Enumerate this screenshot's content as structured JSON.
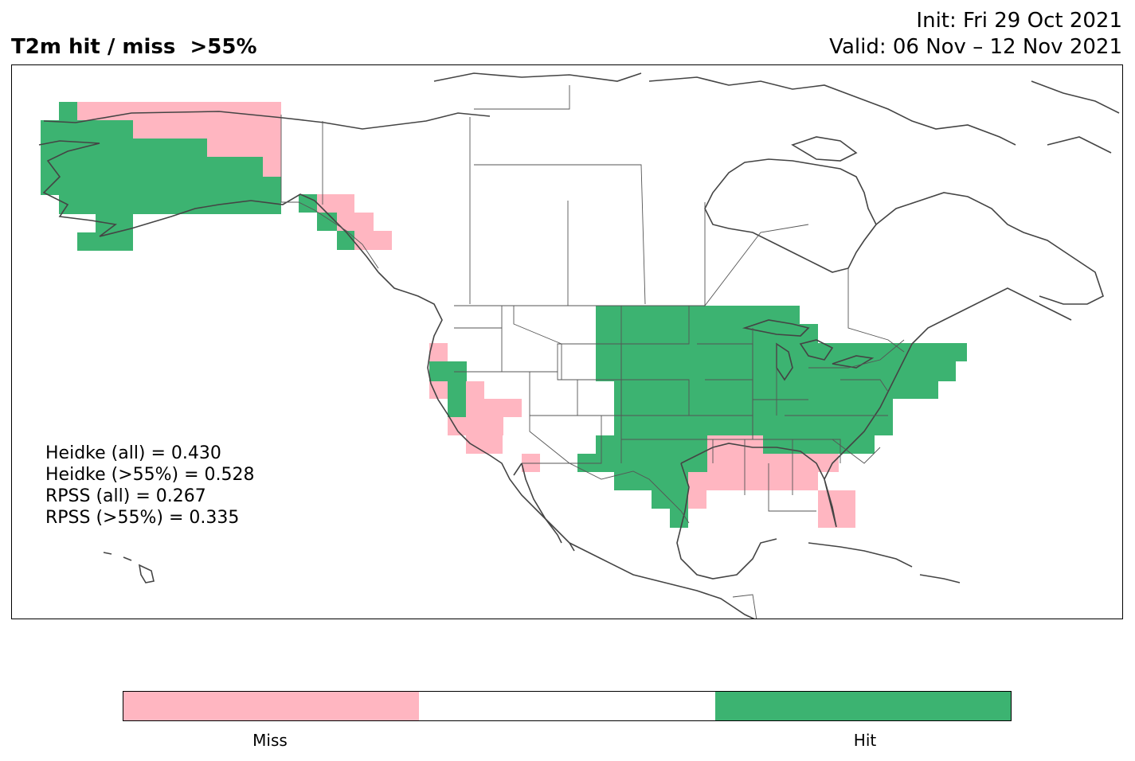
{
  "title": {
    "main": "T2m hit / miss  >55%",
    "init": "Init: Fri 29 Oct 2021",
    "valid": "Valid: 06 Nov – 12 Nov 2021"
  },
  "scores": [
    "Heidke (all) = 0.430",
    "Heidke (>55%) = 0.528",
    "RPSS (all) = 0.267",
    "RPSS (>55%) = 0.335"
  ],
  "legend": {
    "type": "categorical-colorbar",
    "categories": [
      {
        "label": "Miss",
        "color": "#ffb6c1"
      },
      {
        "label": "",
        "color": "#ffffff"
      },
      {
        "label": "Hit",
        "color": "#3cb371"
      }
    ]
  },
  "colors": {
    "miss": "#ffb6c1",
    "hit": "#3cb371",
    "coastline": "#444444",
    "border": "#555555"
  },
  "chart_data": {
    "type": "heatmap",
    "description": "gridded hit/miss verification of 2m temperature forecast over North America",
    "categories": [
      "Miss",
      "Hit"
    ]
  }
}
